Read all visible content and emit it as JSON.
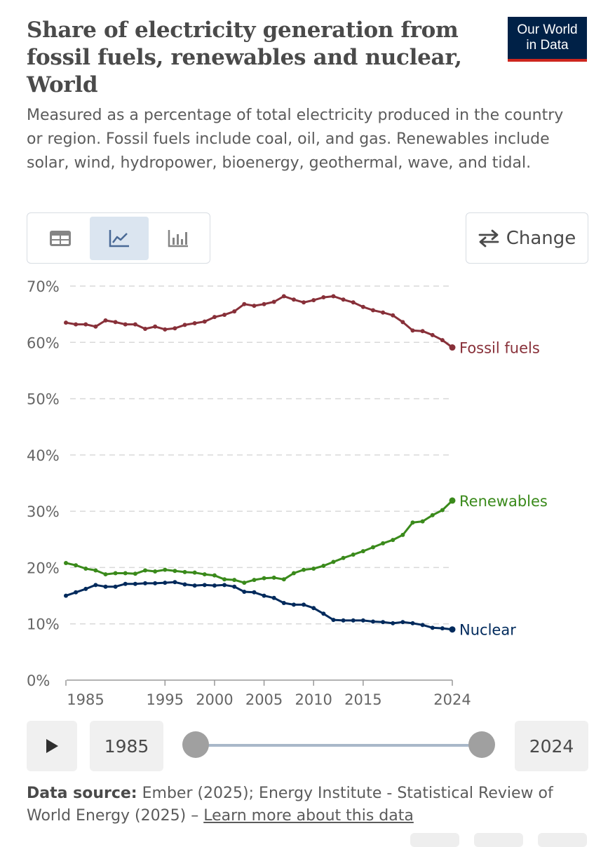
{
  "header": {
    "title": "Share of electricity generation from fossil fuels, renewables and nuclear, World",
    "subtitle": "Measured as a percentage of total electricity produced in the country or region. Fossil fuels include coal, oil, and gas. Renewables include solar, wind, hydropower, bioenergy, geothermal, wave, and tidal.",
    "logo_line1": "Our World",
    "logo_line2": "in Data"
  },
  "toolbar": {
    "views": [
      "table-icon",
      "line-chart-icon",
      "bar-chart-icon"
    ],
    "active_view": "line-chart-icon",
    "change_label": "Change"
  },
  "timeline": {
    "start_year": "1985",
    "end_year": "2024"
  },
  "footer": {
    "source_label": "Data source:",
    "source_text": "Ember (2025); Energy Institute - Statistical Review of World Energy (2025) –",
    "learn_more": "Learn more about this data"
  },
  "colors": {
    "fossil": "#883039",
    "renewables": "#3a8a1b",
    "nuclear": "#002a5c",
    "brand": "#002147",
    "brand_accent": "#ce261e"
  },
  "chart_data": {
    "type": "line",
    "title": "Share of electricity generation from fossil fuels, renewables and nuclear, World",
    "xlabel": "",
    "ylabel": "",
    "xlim": [
      1985,
      2024
    ],
    "ylim": [
      0,
      70
    ],
    "y_ticks": [
      0,
      10,
      20,
      30,
      40,
      50,
      60,
      70
    ],
    "y_tick_labels": [
      "0%",
      "10%",
      "20%",
      "30%",
      "40%",
      "50%",
      "60%",
      "70%"
    ],
    "x_ticks": [
      1985,
      1995,
      2000,
      2005,
      2010,
      2015,
      2024
    ],
    "x_tick_labels": [
      "1985",
      "1995",
      "2000",
      "2005",
      "2010",
      "2015",
      "2024"
    ],
    "grid": "horizontal dashed",
    "x": [
      1985,
      1986,
      1987,
      1988,
      1989,
      1990,
      1991,
      1992,
      1993,
      1994,
      1995,
      1996,
      1997,
      1998,
      1999,
      2000,
      2001,
      2002,
      2003,
      2004,
      2005,
      2006,
      2007,
      2008,
      2009,
      2010,
      2011,
      2012,
      2013,
      2014,
      2015,
      2016,
      2017,
      2018,
      2019,
      2020,
      2021,
      2022,
      2023,
      2024
    ],
    "series": [
      {
        "name": "Fossil fuels",
        "color": "#883039",
        "values": [
          63.5,
          63.2,
          63.2,
          62.8,
          63.9,
          63.6,
          63.2,
          63.2,
          62.4,
          62.8,
          62.3,
          62.5,
          63.1,
          63.4,
          63.7,
          64.5,
          64.9,
          65.5,
          66.8,
          66.5,
          66.8,
          67.2,
          68.2,
          67.6,
          67.1,
          67.5,
          68.0,
          68.2,
          67.6,
          67.1,
          66.3,
          65.7,
          65.3,
          64.8,
          63.6,
          62.1,
          62.0,
          61.3,
          60.4,
          59.1
        ]
      },
      {
        "name": "Renewables",
        "color": "#3a8a1b",
        "values": [
          20.8,
          20.4,
          19.8,
          19.5,
          18.8,
          19.0,
          19.0,
          18.9,
          19.5,
          19.3,
          19.6,
          19.4,
          19.2,
          19.1,
          18.8,
          18.6,
          17.9,
          17.8,
          17.3,
          17.8,
          18.1,
          18.2,
          17.9,
          19.0,
          19.6,
          19.8,
          20.3,
          21.0,
          21.7,
          22.3,
          22.9,
          23.6,
          24.3,
          24.9,
          25.8,
          28.0,
          28.2,
          29.3,
          30.2,
          31.9
        ]
      },
      {
        "name": "Nuclear",
        "color": "#002a5c",
        "values": [
          15.0,
          15.6,
          16.2,
          16.9,
          16.6,
          16.6,
          17.1,
          17.1,
          17.2,
          17.2,
          17.3,
          17.4,
          17.0,
          16.8,
          16.9,
          16.8,
          16.9,
          16.6,
          15.7,
          15.6,
          15.0,
          14.6,
          13.7,
          13.4,
          13.4,
          12.8,
          11.8,
          10.7,
          10.6,
          10.6,
          10.6,
          10.4,
          10.3,
          10.1,
          10.3,
          10.1,
          9.8,
          9.3,
          9.2,
          9.0
        ]
      }
    ]
  }
}
